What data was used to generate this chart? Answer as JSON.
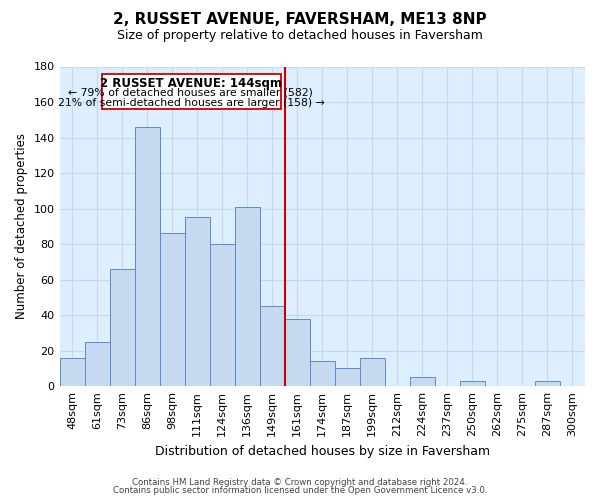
{
  "title": "2, RUSSET AVENUE, FAVERSHAM, ME13 8NP",
  "subtitle": "Size of property relative to detached houses in Faversham",
  "xlabel": "Distribution of detached houses by size in Faversham",
  "ylabel": "Number of detached properties",
  "bar_labels": [
    "48sqm",
    "61sqm",
    "73sqm",
    "86sqm",
    "98sqm",
    "111sqm",
    "124sqm",
    "136sqm",
    "149sqm",
    "161sqm",
    "174sqm",
    "187sqm",
    "199sqm",
    "212sqm",
    "224sqm",
    "237sqm",
    "250sqm",
    "262sqm",
    "275sqm",
    "287sqm",
    "300sqm"
  ],
  "bar_heights": [
    16,
    25,
    66,
    146,
    86,
    95,
    80,
    101,
    45,
    38,
    14,
    10,
    16,
    0,
    5,
    0,
    3,
    0,
    0,
    3,
    0
  ],
  "bar_color": "#c6d9f1",
  "bar_edge_color": "#5b8ac7",
  "ylim": [
    0,
    180
  ],
  "yticks": [
    0,
    20,
    40,
    60,
    80,
    100,
    120,
    140,
    160,
    180
  ],
  "property_size_label": "2 RUSSET AVENUE: 144sqm",
  "annotation_line1": "← 79% of detached houses are smaller (582)",
  "annotation_line2": "21% of semi-detached houses are larger (158) →",
  "vline_color": "#cc0000",
  "vline_position": 8.5,
  "footer_line1": "Contains HM Land Registry data © Crown copyright and database right 2024.",
  "footer_line2": "Contains public sector information licensed under the Open Government Licence v3.0.",
  "background_color": "#ffffff",
  "grid_color": "#c8d8e8"
}
